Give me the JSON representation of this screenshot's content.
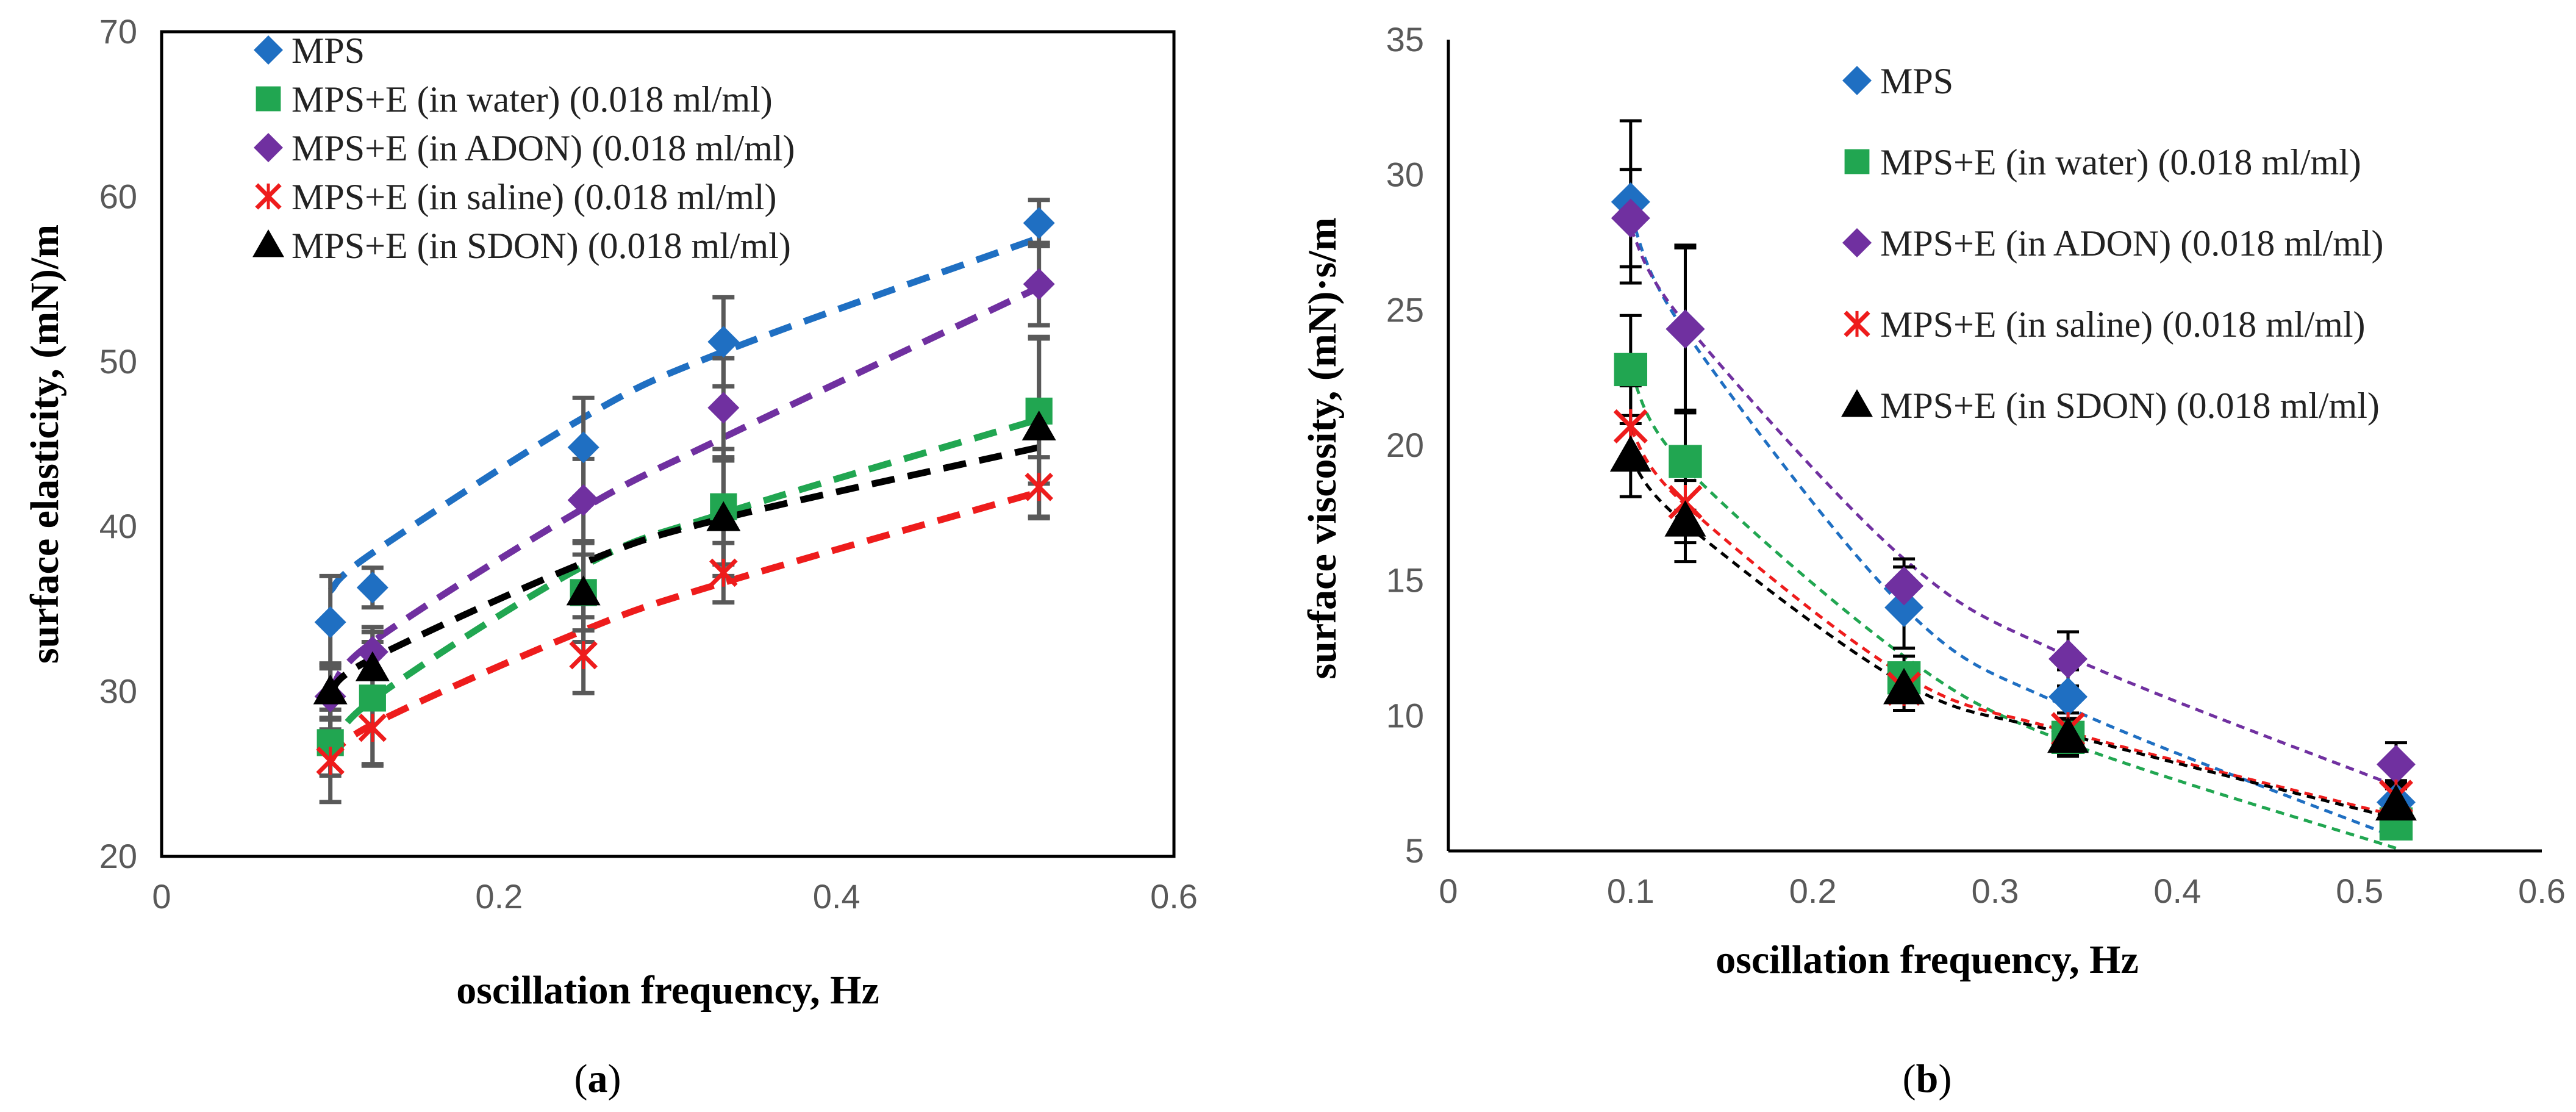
{
  "colors": {
    "MPS": "#1f6fc2",
    "water": "#21a651",
    "ADON": "#7030a0",
    "saline": "#ee1c1c",
    "SDON": "#000000",
    "errbar_a": "#595959",
    "errbar_b": "#000000"
  },
  "chart_data": [
    {
      "type": "scatter",
      "panel_label_parts": [
        "(",
        "a",
        ")"
      ],
      "xlabel": "oscillation frequency, Hz",
      "ylabel": "surface elasticity, (mN)/m",
      "xlim": [
        0,
        0.6
      ],
      "ylim": [
        20,
        70
      ],
      "xticks": [
        0,
        0.2,
        0.4,
        0.6
      ],
      "xtick_labels": [
        "0",
        "0.2",
        "0.4",
        "0.6"
      ],
      "yticks": [
        20,
        30,
        40,
        50,
        60,
        70
      ],
      "ytick_labels": [
        "20",
        "30",
        "40",
        "50",
        "60",
        "70"
      ],
      "legend_position": "top-left",
      "trendline": "power, dashed",
      "x": [
        0.1,
        0.125,
        0.25,
        0.333,
        0.52
      ],
      "series": [
        {
          "name": "MPS",
          "key": "MPS",
          "marker": "diamond",
          "values": [
            34.2,
            36.3,
            44.8,
            51.2,
            58.4
          ],
          "errors": [
            2.8,
            1.2,
            3.0,
            2.7,
            1.4
          ],
          "fit": [
            36.1,
            38.4,
            46.6,
            50.6,
            57.5
          ]
        },
        {
          "name": "MPS+E (in water) (0.018 ml/ml)",
          "key": "water",
          "marker": "square",
          "values": [
            26.9,
            29.6,
            36.0,
            41.2,
            47.0
          ],
          "errors": [
            2.0,
            4.0,
            3.0,
            3.5,
            4.4
          ],
          "fit": [
            26.2,
            29.5,
            37.6,
            40.8,
            46.5
          ]
        },
        {
          "name": "MPS+E (in ADON) (0.018 ml/ml)",
          "key": "ADON",
          "marker": "diamond",
          "values": [
            29.7,
            32.4,
            41.6,
            47.2,
            54.7
          ],
          "errors": [
            2.0,
            1.5,
            2.5,
            3.0,
            2.5
          ],
          "fit": [
            29.9,
            33.0,
            41.1,
            45.4,
            54.5
          ]
        },
        {
          "name": "MPS+E (in saline) (0.018 ml/ml)",
          "key": "saline",
          "marker": "x",
          "values": [
            25.8,
            27.8,
            32.2,
            37.2,
            42.4
          ],
          "errors": [
            2.5,
            2.3,
            2.3,
            1.8,
            1.8
          ],
          "fit": [
            25.8,
            28.0,
            33.7,
            36.6,
            42.1
          ]
        },
        {
          "name": "MPS+E (in SDON) (0.018 ml/ml)",
          "key": "SDON",
          "marker": "triangle",
          "values": [
            30.0,
            31.4,
            36.0,
            40.5,
            46.0
          ],
          "errors": [
            1.6,
            1.6,
            2.3,
            3.5,
            5.5
          ],
          "fit": [
            30.0,
            32.0,
            37.8,
            40.5,
            44.8
          ]
        }
      ]
    },
    {
      "type": "scatter",
      "panel_label_parts": [
        "(",
        "b",
        ")"
      ],
      "xlabel": "oscillation frequency, Hz",
      "ylabel": "surface viscosity, (mN)·s/m",
      "xlim": [
        0,
        0.6
      ],
      "ylim": [
        5,
        35
      ],
      "xticks": [
        0,
        0.1,
        0.2,
        0.3,
        0.4,
        0.5,
        0.6
      ],
      "xtick_labels": [
        "0",
        "0.1",
        "0.2",
        "0.3",
        "0.4",
        "0.5",
        "0.6"
      ],
      "yticks": [
        5,
        10,
        15,
        20,
        25,
        30,
        35
      ],
      "ytick_labels": [
        "5",
        "10",
        "15",
        "20",
        "25",
        "30",
        "35"
      ],
      "legend_position": "top-right",
      "trendline": "fitted curve, dotted",
      "x": [
        0.1,
        0.13,
        0.25,
        0.34,
        0.52
      ],
      "series": [
        {
          "name": "MPS",
          "key": "MPS",
          "marker": "diamond",
          "values": [
            29.0,
            24.3,
            14.0,
            10.7,
            6.8
          ],
          "errors": [
            3.0,
            3.0,
            1.5,
            1.0,
            0.7
          ],
          "fit": [
            28.5,
            24.2,
            14.0,
            10.3,
            5.5
          ]
        },
        {
          "name": "MPS+E (in water) (0.018 ml/ml)",
          "key": "water",
          "marker": "square",
          "values": [
            22.8,
            19.4,
            11.4,
            9.2,
            6.0
          ],
          "errors": [
            2.0,
            1.8,
            0.8,
            0.7,
            0.5
          ],
          "fit": [
            22.7,
            19.2,
            12.2,
            9.0,
            5.1
          ]
        },
        {
          "name": "MPS+E (in ADON) (0.018 ml/ml)",
          "key": "ADON",
          "marker": "diamond",
          "values": [
            28.4,
            24.3,
            14.8,
            12.1,
            8.2
          ],
          "errors": [
            1.8,
            3.1,
            1.0,
            1.0,
            0.8
          ],
          "fit": [
            28.0,
            24.5,
            15.8,
            12.2,
            7.4
          ]
        },
        {
          "name": "MPS+E (in saline) (0.018 ml/ml)",
          "key": "saline",
          "marker": "x",
          "values": [
            20.7,
            17.9,
            11.0,
            9.5,
            7.0
          ],
          "errors": [
            1.5,
            1.5,
            0.8,
            0.6,
            0.6
          ],
          "fit": [
            20.6,
            17.8,
            11.5,
            9.4,
            6.3
          ]
        },
        {
          "name": "MPS+E (in SDON) (0.018 ml/ml)",
          "key": "SDON",
          "marker": "triangle",
          "values": [
            19.6,
            17.2,
            11.0,
            9.2,
            6.7
          ],
          "errors": [
            1.5,
            1.5,
            0.8,
            0.6,
            0.6
          ],
          "fit": [
            19.5,
            17.1,
            11.2,
            9.3,
            6.2
          ]
        }
      ]
    }
  ]
}
